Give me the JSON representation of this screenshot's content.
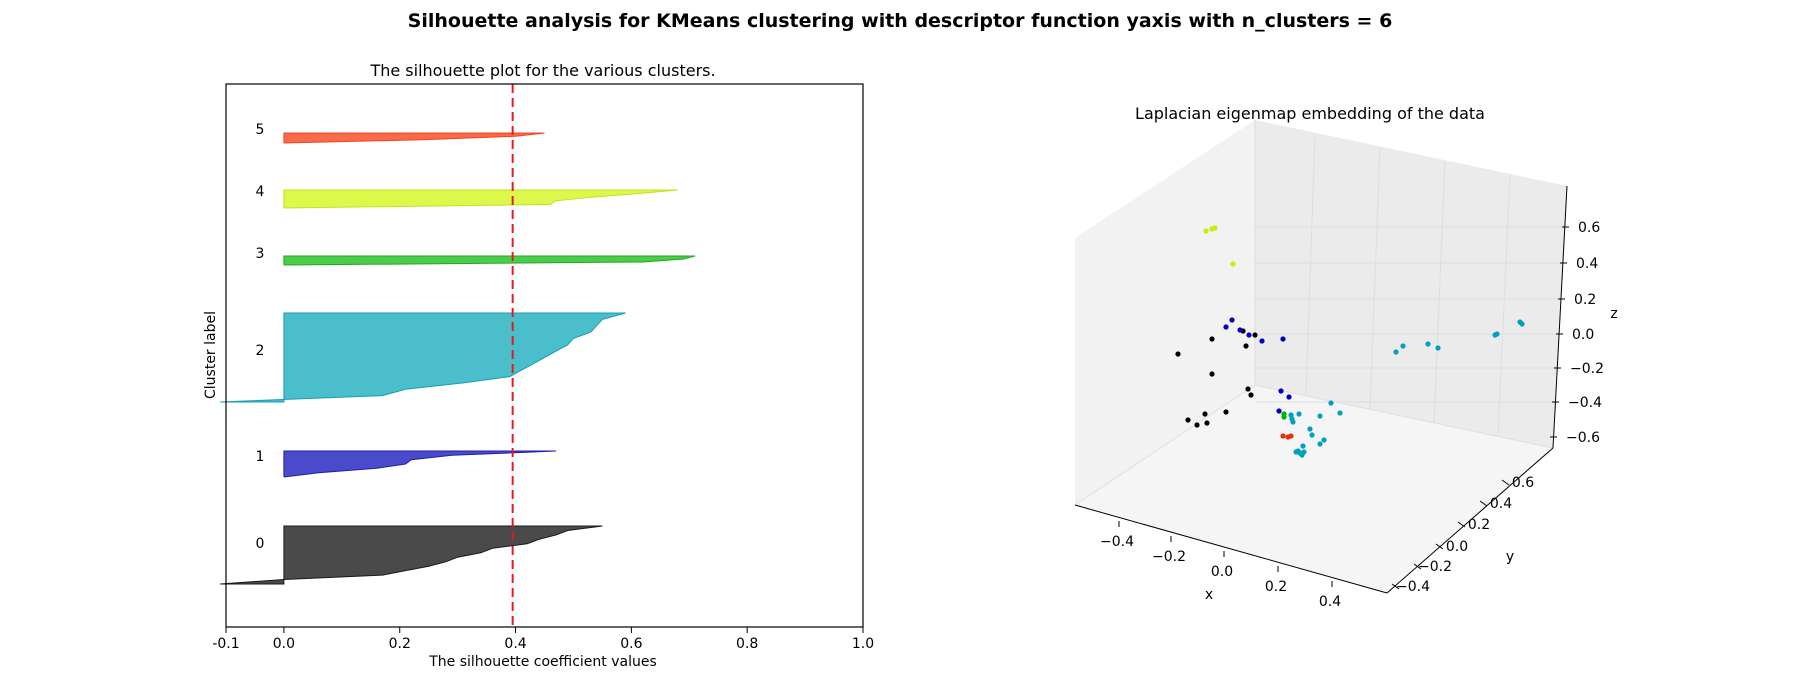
{
  "figure": {
    "suptitle": "Silhouette analysis for KMeans clustering with descriptor function yaxis with n_clusters = 6"
  },
  "chart_data": [
    {
      "type": "area",
      "title": "The silhouette plot for the various clusters.",
      "xlabel": "The silhouette coefficient values",
      "ylabel": "Cluster label",
      "xlim": [
        -0.1,
        1.0
      ],
      "xticks": [
        "-0.1",
        "0.0",
        "0.2",
        "0.4",
        "0.6",
        "0.8",
        "1.0"
      ],
      "grid": false,
      "average_silhouette_score": 0.395,
      "average_line_color": "#e41a1c",
      "clusters": [
        {
          "label": "0",
          "color": "#4a4a4a",
          "edge": "#1a1a1a",
          "values": [
            0.55,
            0.49,
            0.47,
            0.44,
            0.42,
            0.36,
            0.34,
            0.3,
            0.28,
            0.25,
            0.21,
            0.17,
            0.0,
            -0.11
          ]
        },
        {
          "label": "1",
          "color": "#4a4acd",
          "edge": "#1e1eaa",
          "values": [
            0.47,
            0.29,
            0.22,
            0.21,
            0.16,
            0.06,
            0.0
          ]
        },
        {
          "label": "2",
          "color": "#4bbecc",
          "edge": "#159fb1",
          "values": [
            0.59,
            0.55,
            0.54,
            0.53,
            0.5,
            0.49,
            0.47,
            0.45,
            0.43,
            0.41,
            0.39,
            0.31,
            0.21,
            0.17,
            -0.11
          ]
        },
        {
          "label": "3",
          "color": "#4bcc4b",
          "edge": "#20a820",
          "values": [
            0.71,
            0.69,
            0.62,
            0.0
          ]
        },
        {
          "label": "4",
          "color": "#dcf84a",
          "edge": "#c5e21c",
          "values": [
            0.68,
            0.61,
            0.53,
            0.47,
            0.46,
            0.0
          ]
        },
        {
          "label": "5",
          "color": "#fa6b4a",
          "edge": "#ee4422",
          "values": [
            0.45,
            0.4,
            0.24,
            0.0
          ]
        }
      ]
    },
    {
      "type": "scatter",
      "title": "Laplacian eigenmap embedding of the data",
      "xlabel": "x",
      "ylabel": "y",
      "zlabel": "z",
      "xticks": [
        "−0.4",
        "−0.2",
        "0.0",
        "0.2",
        "0.4"
      ],
      "yticks": [
        "−0.4",
        "−0.2",
        "0.0",
        "0.2",
        "0.4",
        "0.6"
      ],
      "zticks": [
        "0.6",
        "0.4",
        "0.2",
        "0.0",
        "−0.2",
        "−0.4",
        "−0.6"
      ],
      "grid": true,
      "series": [
        {
          "cluster": "0",
          "color": "#000000",
          "points": [
            [
              1212,
              339
            ],
            [
              1243,
              331
            ],
            [
              1246,
              346
            ],
            [
              1255,
              335
            ],
            [
              1178,
              354
            ],
            [
              1212,
              374
            ],
            [
              1248,
              389
            ],
            [
              1251,
              395
            ],
            [
              1226,
              412
            ],
            [
              1205,
              414
            ],
            [
              1188,
              420
            ],
            [
              1197,
              425
            ],
            [
              1207,
              423
            ]
          ]
        },
        {
          "cluster": "1",
          "color": "#0000c8",
          "points": [
            [
              1232,
              320
            ],
            [
              1240,
              330
            ],
            [
              1249,
              335
            ],
            [
              1262,
              341
            ],
            [
              1226,
              327
            ],
            [
              1283,
              339
            ],
            [
              1281,
              391
            ],
            [
              1289,
              397
            ],
            [
              1279,
              411
            ]
          ]
        },
        {
          "cluster": "2",
          "color": "#00a0c0",
          "points": [
            [
              1520,
              322
            ],
            [
              1522,
              324
            ],
            [
              1497,
              334
            ],
            [
              1495,
              335
            ],
            [
              1428,
              344
            ],
            [
              1438,
              348
            ],
            [
              1403,
              346
            ],
            [
              1396,
              352
            ],
            [
              1331,
              403
            ],
            [
              1320,
              416
            ],
            [
              1340,
              413
            ],
            [
              1310,
              429
            ],
            [
              1293,
              422
            ],
            [
              1291,
              415
            ],
            [
              1299,
              414
            ],
            [
              1292,
              419
            ],
            [
              1303,
              446
            ],
            [
              1298,
              451
            ],
            [
              1312,
              435
            ],
            [
              1324,
              440
            ],
            [
              1320,
              444
            ],
            [
              1296,
              452
            ],
            [
              1304,
              452
            ],
            [
              1300,
              453
            ],
            [
              1302,
              455
            ]
          ]
        },
        {
          "cluster": "3",
          "color": "#00b400",
          "points": [
            [
              1284,
              417
            ],
            [
              1284,
              414
            ]
          ]
        },
        {
          "cluster": "4",
          "color": "#c8f000",
          "points": [
            [
              1206,
              231
            ],
            [
              1212,
              229
            ],
            [
              1215,
              228
            ],
            [
              1233,
              264
            ]
          ]
        },
        {
          "cluster": "5",
          "color": "#e83010",
          "points": [
            [
              1283,
              436
            ],
            [
              1288,
              437
            ],
            [
              1291,
              436
            ]
          ]
        }
      ]
    }
  ]
}
